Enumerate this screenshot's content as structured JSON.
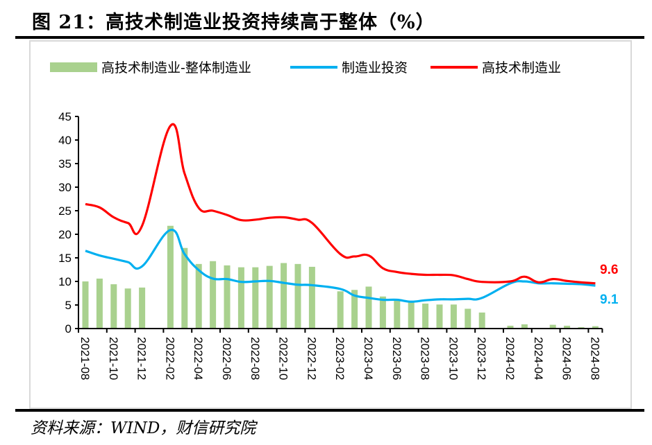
{
  "title": "图 21：高技术制造业投资持续高于整体（%）",
  "source": "资料来源：WIND，财信研究院",
  "chart_data": {
    "type": "bar+line",
    "title": "",
    "xlabel": "",
    "ylabel": "",
    "ylim": [
      0,
      45
    ],
    "yticks": [
      "0",
      "5",
      "10",
      "15",
      "20",
      "25",
      "30",
      "35",
      "40",
      "45"
    ],
    "grid": false,
    "legend_position": "top",
    "xtick_labels": [
      "2021-08",
      "2021-10",
      "2021-12",
      "2022-02",
      "2022-04",
      "2022-06",
      "2022-08",
      "2022-10",
      "2022-12",
      "2023-02",
      "2023-04",
      "2023-06",
      "2023-08",
      "2023-10",
      "2023-12",
      "2024-02",
      "2024-04",
      "2024-06",
      "2024-08"
    ],
    "x": [
      "2021-08",
      "2021-09",
      "2021-10",
      "2021-11",
      "2021-12",
      "2022-02",
      "2022-03",
      "2022-04",
      "2022-05",
      "2022-06",
      "2022-07",
      "2022-08",
      "2022-09",
      "2022-10",
      "2022-11",
      "2022-12",
      "2023-02",
      "2023-03",
      "2023-04",
      "2023-05",
      "2023-06",
      "2023-07",
      "2023-08",
      "2023-09",
      "2023-10",
      "2023-11",
      "2023-12",
      "2024-02",
      "2024-03",
      "2024-04",
      "2024-05",
      "2024-06",
      "2024-07",
      "2024-08"
    ],
    "series": [
      {
        "name": "高技术制造业-整体制造业",
        "type": "bar",
        "color": "#a9d18e",
        "values": [
          10.0,
          10.6,
          9.4,
          8.5,
          8.7,
          21.8,
          17.1,
          13.7,
          14.3,
          13.4,
          13.0,
          13.0,
          13.3,
          13.9,
          13.7,
          13.1,
          7.9,
          8.2,
          8.9,
          6.8,
          6.0,
          5.7,
          5.3,
          5.1,
          5.1,
          4.2,
          3.4,
          0.6,
          0.9,
          0.0,
          0.8,
          0.6,
          0.3,
          0.5
        ]
      },
      {
        "name": "制造业投资",
        "type": "line",
        "color": "#00b0f0",
        "values": [
          16.5,
          15.5,
          14.8,
          14.1,
          13.2,
          20.9,
          15.8,
          12.4,
          10.6,
          10.5,
          9.9,
          10.0,
          10.1,
          9.7,
          9.3,
          9.2,
          8.4,
          7.0,
          6.5,
          6.1,
          6.1,
          5.7,
          6.0,
          6.2,
          6.2,
          6.3,
          6.5,
          9.6,
          10.0,
          9.6,
          9.6,
          9.5,
          9.4,
          9.1
        ]
      },
      {
        "name": "高技术制造业",
        "type": "line",
        "color": "#ff0000",
        "values": [
          26.4,
          25.7,
          23.6,
          22.4,
          21.8,
          43.0,
          32.9,
          25.6,
          25.0,
          24.1,
          23.0,
          23.1,
          23.5,
          23.6,
          23.1,
          22.4,
          15.8,
          15.3,
          15.5,
          12.8,
          12.0,
          11.6,
          11.4,
          11.4,
          11.3,
          10.5,
          9.9,
          10.0,
          11.0,
          9.8,
          10.5,
          10.1,
          9.8,
          9.6
        ]
      }
    ],
    "annotations": [
      {
        "series": "高技术制造业",
        "text": "9.6",
        "color": "#ff0000"
      },
      {
        "series": "制造业投资",
        "text": "9.1",
        "color": "#00b0f0"
      }
    ]
  }
}
